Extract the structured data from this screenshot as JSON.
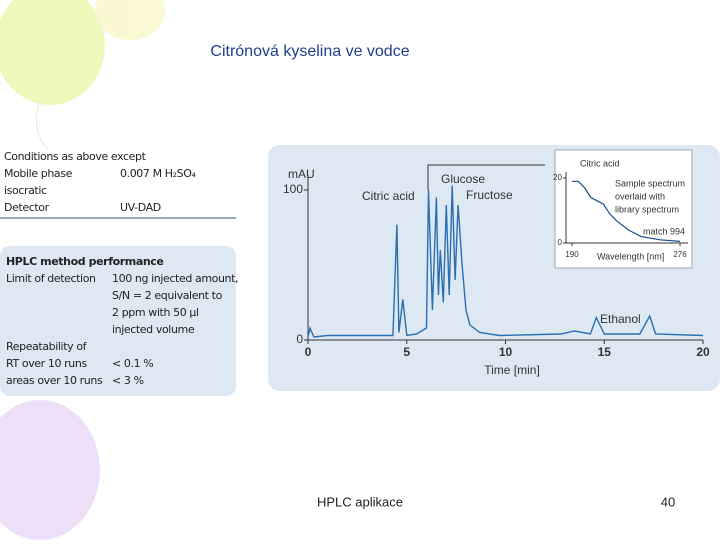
{
  "slide": {
    "title": "Citrónová kyselina ve vodce",
    "footer": "HPLC aplikace",
    "page_number": "40"
  },
  "conditions": {
    "rows": [
      {
        "label": "Conditions as above except"
      },
      {
        "label": "Mobile phase",
        "value": "0.007 M H₂SO₄"
      },
      {
        "label": "isocratic"
      },
      {
        "label": "Detector",
        "value": "UV-DAD"
      }
    ]
  },
  "performance": {
    "title": "HPLC method performance",
    "rows": [
      {
        "label": "Limit of detection",
        "value": [
          "100 ng injected amount,",
          "S/N = 2 equivalent to",
          "2 ppm with 50 µl",
          "injected volume"
        ]
      },
      {
        "label": "Repeatability of"
      },
      {
        "label": "RT over 10 runs",
        "value": "< 0.1 %"
      },
      {
        "label": "areas over 10 runs",
        "value": "< 3 %"
      }
    ]
  },
  "chart_data": {
    "type": "line",
    "y_label": "mAU",
    "x_label": "Time [min]",
    "color": "#2a6fb0",
    "xlim": [
      0,
      20
    ],
    "ylim": [
      0,
      110
    ],
    "xticks": [
      0,
      5,
      10,
      15,
      20
    ],
    "yticks": [
      0,
      100
    ],
    "annotations": {
      "citric": "Citric acid",
      "glucose": "Glucose",
      "fructose": "Fructose",
      "ethanol": "Ethanol"
    },
    "x": [
      0,
      0.1,
      0.3,
      1.0,
      3.0,
      4.3,
      4.5,
      4.6,
      4.8,
      5.0,
      5.5,
      6.0,
      6.1,
      6.3,
      6.5,
      6.6,
      6.7,
      6.85,
      7.0,
      7.15,
      7.3,
      7.45,
      7.6,
      7.8,
      8.0,
      8.2,
      8.7,
      9.7,
      12.8,
      13.5,
      14.3,
      14.6,
      15.0,
      16.8,
      17.3,
      17.6,
      20
    ],
    "values": [
      2,
      8,
      2,
      3,
      3,
      3,
      77,
      5,
      27,
      3,
      4,
      8,
      100,
      20,
      95,
      30,
      60,
      25,
      90,
      30,
      103,
      40,
      90,
      50,
      20,
      10,
      5,
      3,
      4,
      6,
      4,
      15,
      4,
      4,
      16,
      4,
      3
    ],
    "inset": {
      "title": "Citric acid",
      "note": [
        "Sample spectrum",
        "overlaid with",
        "library spectrum"
      ],
      "match": "match 994",
      "x_label": "Wavelength [nm]",
      "xlim": [
        190,
        276
      ],
      "ylim": [
        0,
        20
      ],
      "xticks": [
        190,
        276
      ],
      "yticks": [
        0,
        20
      ],
      "x": [
        190,
        195,
        200,
        205,
        210,
        215,
        220,
        225,
        235,
        245,
        260,
        276
      ],
      "values": [
        19,
        19,
        17,
        14,
        13,
        12,
        9,
        7,
        4,
        2,
        1,
        0.5
      ]
    }
  }
}
